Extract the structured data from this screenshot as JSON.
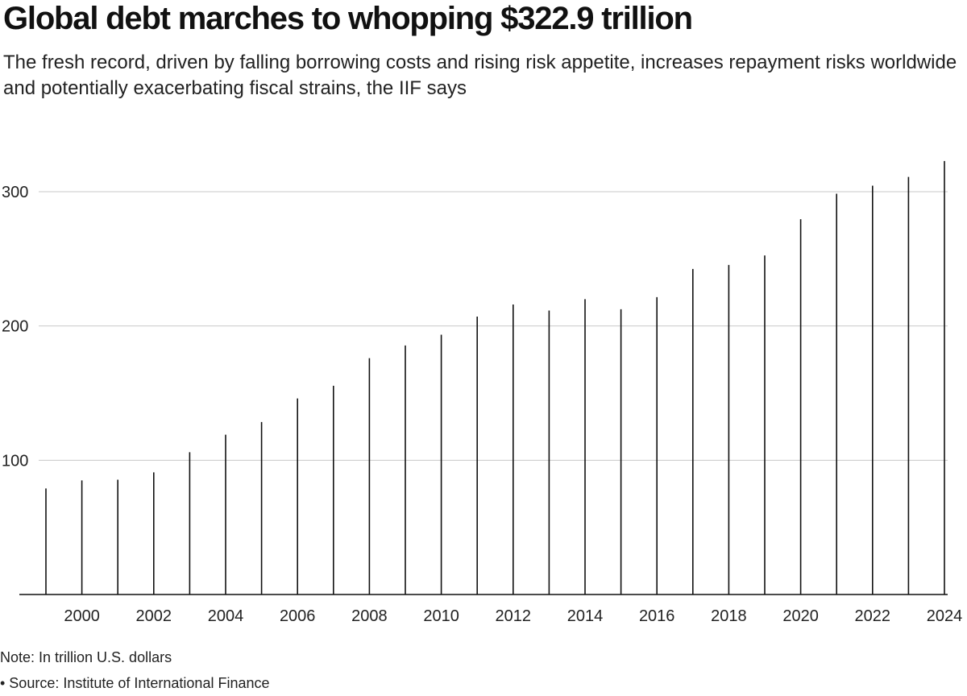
{
  "header": {
    "title": "Global debt marches to whopping $322.9 trillion",
    "subtitle": "The fresh record, driven by falling borrowing costs and rising risk appetite, increases repayment risks worldwide and potentially exacerbating fiscal strains, the IIF says"
  },
  "footer": {
    "note": "Note: In trillion U.S. dollars",
    "source": "• Source: Institute of International Finance"
  },
  "chart_data": {
    "type": "bar",
    "x": [
      1999,
      2000,
      2001,
      2002,
      2003,
      2004,
      2005,
      2006,
      2007,
      2008,
      2009,
      2010,
      2011,
      2012,
      2013,
      2014,
      2015,
      2016,
      2017,
      2018,
      2019,
      2020,
      2021,
      2022,
      2023,
      2024
    ],
    "values": [
      79,
      85,
      85.5,
      91,
      106,
      119,
      128.5,
      146,
      155.5,
      176,
      185.5,
      193.5,
      207,
      216,
      211.5,
      220,
      212.5,
      221.5,
      242.5,
      245.5,
      252.5,
      279.5,
      298.5,
      304.5,
      311,
      322.9
    ],
    "ylim": [
      0,
      330
    ],
    "yticks": [
      100,
      200,
      300
    ],
    "xticks": [
      2000,
      2002,
      2004,
      2006,
      2008,
      2010,
      2012,
      2014,
      2016,
      2018,
      2020,
      2022,
      2024
    ],
    "grid": true,
    "bar_color": "#111111",
    "grid_color": "#c8c8c8"
  }
}
